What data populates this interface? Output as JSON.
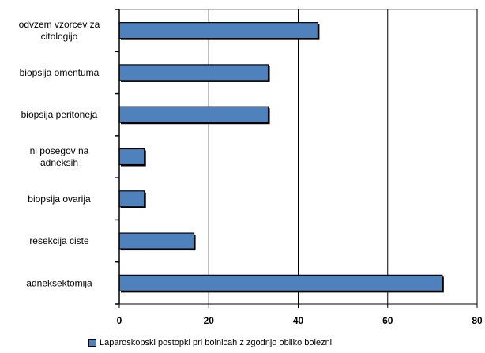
{
  "chart_data": {
    "type": "bar",
    "orientation": "horizontal",
    "categories": [
      [
        "odvzem vzorcev za",
        "citologijo"
      ],
      [
        "biopsija omentuma"
      ],
      [
        "biopsija peritoneja"
      ],
      [
        "ni posegov na",
        "adneksih"
      ],
      [
        "biopsija ovarija"
      ],
      [
        "resekcija ciste"
      ],
      [
        "adneksektomija"
      ]
    ],
    "series": [
      {
        "name": "Laparoskopski postopki pri bolnicah z zgodnjo obliko bolezni",
        "values": [
          44.4,
          33.3,
          33.3,
          5.6,
          5.6,
          16.7,
          72.2
        ]
      }
    ],
    "xlim": [
      0,
      80
    ],
    "xticks": [
      0,
      20,
      40,
      60,
      80
    ],
    "gridlines": [
      20,
      40,
      60
    ],
    "legend_position": "bottom",
    "bar_color": "#4f81bd"
  }
}
